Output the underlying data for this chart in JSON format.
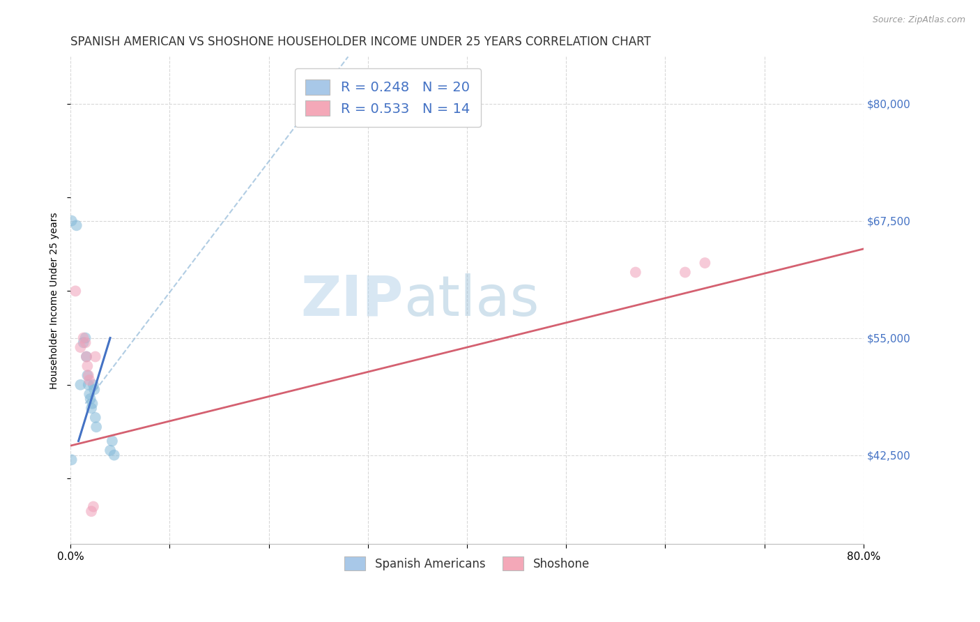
{
  "title": "SPANISH AMERICAN VS SHOSHONE HOUSEHOLDER INCOME UNDER 25 YEARS CORRELATION CHART",
  "source": "Source: ZipAtlas.com",
  "ylabel_label": "Householder Income Under 25 years",
  "ylabel_ticks_labels": [
    "$42,500",
    "$55,000",
    "$67,500",
    "$80,000"
  ],
  "ylabel_ticks_values": [
    42500,
    55000,
    67500,
    80000
  ],
  "xmin": 0.0,
  "xmax": 0.8,
  "ymin": 33000,
  "ymax": 85000,
  "legend_labels_bottom": [
    "Spanish Americans",
    "Shoshone"
  ],
  "watermark_top": "ZIP",
  "watermark_bot": "atlas",
  "blue_scatter_x": [
    0.001,
    0.006,
    0.01,
    0.013,
    0.015,
    0.016,
    0.017,
    0.018,
    0.019,
    0.02,
    0.021,
    0.022,
    0.023,
    0.024,
    0.025,
    0.026,
    0.04,
    0.042,
    0.044,
    0.001
  ],
  "blue_scatter_y": [
    67500,
    67000,
    50000,
    54500,
    55000,
    53000,
    51000,
    50000,
    49000,
    48500,
    47500,
    48000,
    50000,
    49500,
    46500,
    45500,
    43000,
    44000,
    42500,
    42000
  ],
  "pink_scatter_x": [
    0.005,
    0.01,
    0.013,
    0.015,
    0.016,
    0.017,
    0.018,
    0.019,
    0.021,
    0.023,
    0.025,
    0.57,
    0.62,
    0.64
  ],
  "pink_scatter_y": [
    60000,
    54000,
    55000,
    54500,
    53000,
    52000,
    51000,
    50500,
    36500,
    37000,
    53000,
    62000,
    62000,
    63000
  ],
  "blue_solid_line_x": [
    0.008,
    0.04
  ],
  "blue_solid_line_y": [
    44000,
    55000
  ],
  "blue_dash_line_x": [
    0.015,
    0.28
  ],
  "blue_dash_line_y": [
    48000,
    85000
  ],
  "pink_line_x": [
    0.0,
    0.8
  ],
  "pink_line_y": [
    43500,
    64500
  ],
  "scatter_size": 130,
  "scatter_alpha": 0.55,
  "blue_color": "#82b8d8",
  "pink_color": "#f0a0b8",
  "blue_line_color": "#4472c4",
  "pink_line_color": "#d46070",
  "blue_dash_color": "#90b8d8",
  "grid_color": "#d8d8d8",
  "background_color": "#ffffff",
  "title_fontsize": 12,
  "axis_label_fontsize": 10,
  "tick_fontsize": 11,
  "right_tick_color": "#4472c4",
  "legend_box_entry1": "R = 0.248   N = 20",
  "legend_box_entry2": "R = 0.533   N = 14",
  "legend_box_color1": "#a8c8e8",
  "legend_box_color2": "#f4a8b8"
}
